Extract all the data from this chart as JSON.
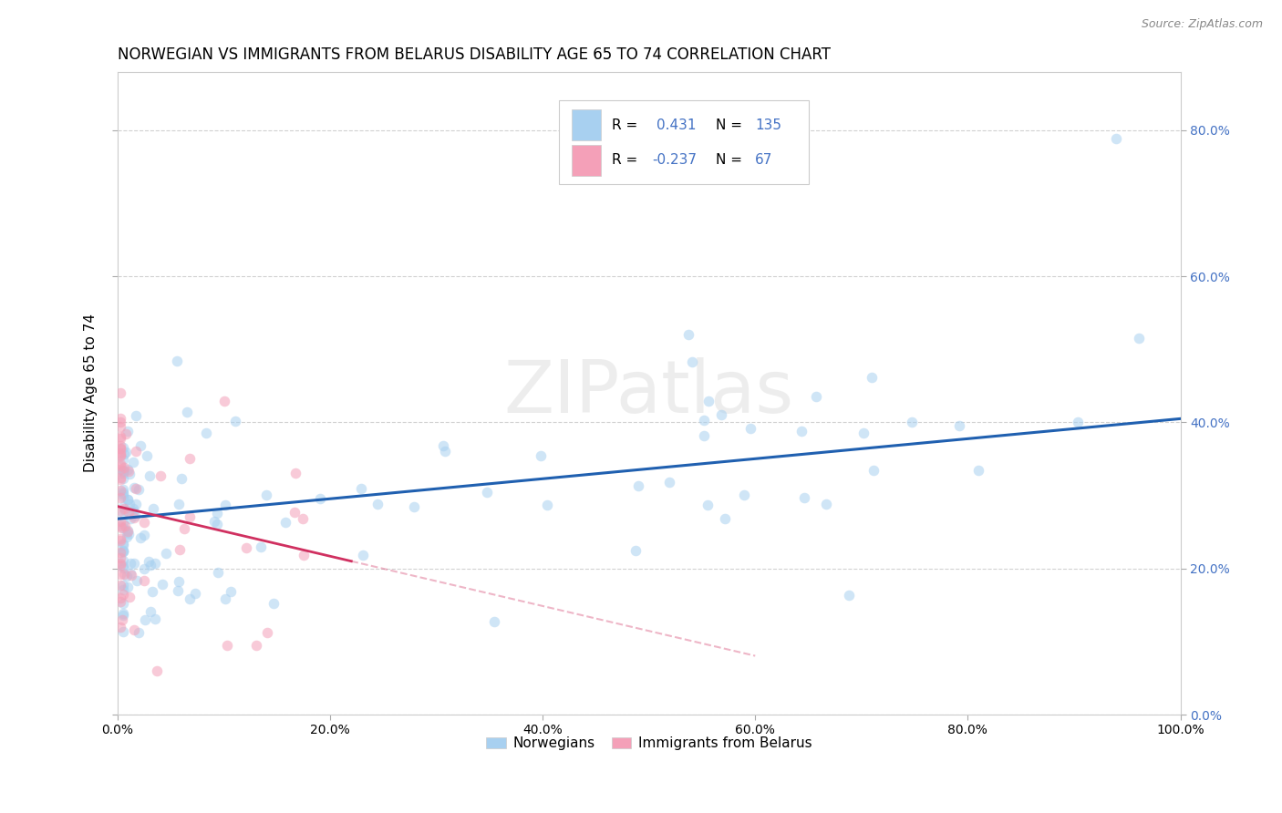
{
  "title": "NORWEGIAN VS IMMIGRANTS FROM BELARUS DISABILITY AGE 65 TO 74 CORRELATION CHART",
  "source": "Source: ZipAtlas.com",
  "ylabel": "Disability Age 65 to 74",
  "xlim": [
    0.0,
    1.0
  ],
  "ylim": [
    0.0,
    0.88
  ],
  "xticks": [
    0.0,
    0.2,
    0.4,
    0.6,
    0.8,
    1.0
  ],
  "yticks": [
    0.0,
    0.2,
    0.4,
    0.6,
    0.8
  ],
  "xticklabels": [
    "0.0%",
    "20.0%",
    "40.0%",
    "60.0%",
    "80.0%",
    "100.0%"
  ],
  "yticklabels": [
    "0.0%",
    "20.0%",
    "40.0%",
    "60.0%",
    "80.0%"
  ],
  "norwegian_color": "#A8D0F0",
  "belarus_color": "#F4A0B8",
  "norwegian_line_color": "#2060B0",
  "belarus_line_color": "#D03060",
  "legend_label1": "Norwegians",
  "legend_label2": "Immigrants from Belarus",
  "norwegian_R": 0.431,
  "norwegian_N": 135,
  "belarus_R": -0.237,
  "belarus_N": 67,
  "norw_line_y0": 0.268,
  "norw_line_y1": 0.405,
  "bel_line_y0": 0.285,
  "bel_line_y1": 0.21,
  "bel_line_x0": 0.0,
  "bel_line_x1": 0.22,
  "background_color": "#ffffff",
  "grid_color": "#cccccc",
  "title_fontsize": 12,
  "axis_label_fontsize": 11,
  "tick_fontsize": 10,
  "legend_fontsize": 11,
  "marker_size": 70,
  "marker_alpha": 0.55
}
